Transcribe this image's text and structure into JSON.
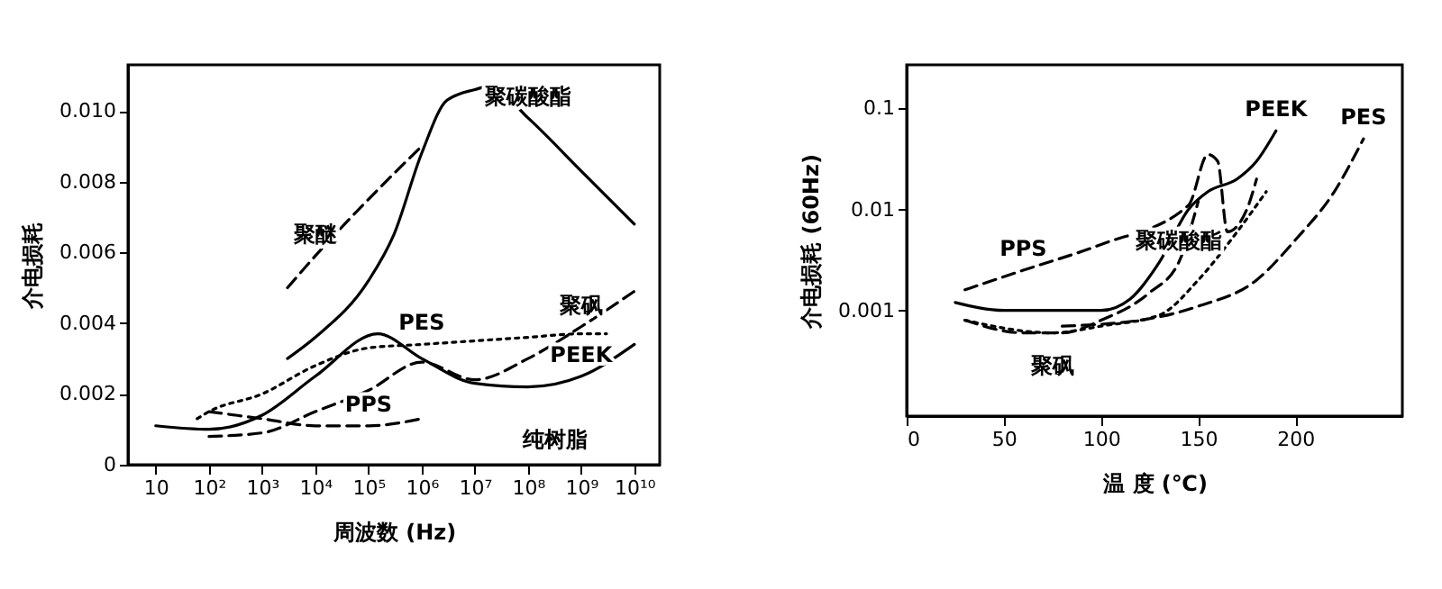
{
  "chart_data": [
    {
      "type": "line",
      "xlabel": "周波数 (Hz)",
      "ylabel": "介电损耗",
      "log": "x",
      "grid": false,
      "xlim": [
        3,
        30000000000
      ],
      "ylim": [
        0,
        0.0113
      ],
      "xticks": [
        10,
        {
          "value": 100,
          "label": "10²"
        },
        {
          "value": 1000,
          "label": "10³"
        },
        {
          "value": 10000,
          "label": "10⁴"
        },
        {
          "value": 100000,
          "label": "10⁵"
        },
        {
          "value": 1000000,
          "label": "10⁶"
        },
        {
          "value": 10000000,
          "label": "10⁷"
        },
        {
          "value": 100000000,
          "label": "10⁸"
        },
        {
          "value": 1000000000,
          "label": "10⁹"
        },
        {
          "value": 10000000000,
          "label": "10¹⁰"
        }
      ],
      "yticks": [
        0,
        0.002,
        0.004,
        0.006,
        0.008,
        {
          "value": 0.01,
          "label": "0.010"
        }
      ],
      "series": [
        {
          "color": "#000000",
          "line_style": "dashed",
          "x": [
            3000,
            10000,
            100000,
            1000000
          ],
          "values": [
            0.005,
            0.0059,
            0.0075,
            0.009
          ]
        },
        {
          "color": "#000000",
          "line_style": "solid",
          "x": [
            3000,
            10000,
            100000,
            300000,
            1000000,
            3000000,
            10000000,
            20000000,
            100000000,
            1000000000,
            10000000000
          ],
          "values": [
            0.003,
            0.0036,
            0.0052,
            0.0065,
            0.0088,
            0.0103,
            0.0106,
            0.0107,
            0.0098,
            0.0083,
            0.0068
          ]
        },
        {
          "color": "#000000",
          "line_style": "dotted",
          "x": [
            60,
            100,
            1000,
            10000,
            100000,
            1000000,
            10000000,
            100000000,
            1000000000,
            3000000000
          ],
          "values": [
            0.0013,
            0.0015,
            0.002,
            0.0028,
            0.0033,
            0.0034,
            0.0035,
            0.0036,
            0.0037,
            0.0037
          ]
        },
        {
          "color": "#000000",
          "line_style": "dashed",
          "x": [
            100,
            1000,
            10000,
            100000,
            1000000,
            10000000,
            100000000,
            1000000000,
            10000000000
          ],
          "values": [
            0.0008,
            0.0009,
            0.0015,
            0.0021,
            0.0029,
            0.0024,
            0.003,
            0.0039,
            0.0049
          ]
        },
        {
          "color": "#000000",
          "line_style": "solid",
          "x": [
            10,
            100,
            1000,
            10000,
            150000,
            1000000,
            10000000,
            100000000,
            1000000000,
            10000000000
          ],
          "values": [
            0.0011,
            0.001,
            0.0014,
            0.0025,
            0.0037,
            0.003,
            0.0023,
            0.0022,
            0.0025,
            0.0034
          ]
        },
        {
          "color": "#000000",
          "line_style": "dashed",
          "x": [
            100,
            1000,
            10000,
            100000,
            1000000
          ],
          "values": [
            0.0015,
            0.0013,
            0.0011,
            0.0011,
            0.0013
          ]
        }
      ],
      "annotations": [
        {
          "text": "聚醚",
          "x": 10000,
          "y": 0.0059
        },
        {
          "text": "聚碳酸酯",
          "x": 100000000,
          "y": 0.0098
        },
        {
          "text": "聚砜",
          "x": 1000000000,
          "y": 0.0039
        },
        {
          "text": "PES",
          "x": 1000000,
          "y": 0.0034
        },
        {
          "text": "PEEK",
          "x": 1000000000,
          "y": 0.0025
        },
        {
          "text": "PPS",
          "x": 100000,
          "y": 0.0011
        },
        "纯树脂"
      ]
    },
    {
      "type": "line",
      "xlabel": "温 度 (℃)",
      "ylabel": "介电损耗 (60Hz)",
      "log": "y",
      "grid": false,
      "xlim": [
        0,
        255
      ],
      "ylim": [
        9e-05,
        0.27
      ],
      "xticks": [
        0,
        50,
        100,
        150,
        200
      ],
      "yticks": [
        0.001,
        0.01,
        0.1
      ],
      "series": [
        {
          "color": "#000000",
          "line_style": "solid",
          "x": [
            25,
            50,
            75,
            100,
            115,
            130,
            145,
            155,
            170,
            180,
            190
          ],
          "values": [
            0.0012,
            0.001,
            0.001,
            0.001,
            0.0013,
            0.003,
            0.01,
            0.015,
            0.02,
            0.03,
            0.06
          ]
        },
        {
          "color": "#000000",
          "line_style": "dashed",
          "x": [
            30,
            60,
            100,
            145,
            155,
            160,
            165,
            175,
            180
          ],
          "values": [
            0.0016,
            0.0025,
            0.0045,
            0.011,
            0.035,
            0.03,
            0.006,
            0.01,
            0.02
          ]
        },
        {
          "color": "#000000",
          "line_style": "dashed",
          "x": [
            30,
            60,
            80,
            100,
            125,
            140,
            150
          ],
          "values": [
            0.0008,
            0.0006,
            0.0006,
            0.0008,
            0.0015,
            0.003,
            0.012
          ]
        },
        {
          "color": "#000000",
          "line_style": "dotted",
          "x": [
            30,
            75,
            100,
            130,
            150,
            170,
            185
          ],
          "values": [
            0.0008,
            0.0006,
            0.0007,
            0.0009,
            0.002,
            0.006,
            0.015
          ]
        },
        {
          "color": "#000000",
          "line_style": "dashed",
          "x": [
            80,
            120,
            150,
            180,
            200,
            220,
            235
          ],
          "values": [
            0.0007,
            0.0008,
            0.0011,
            0.002,
            0.005,
            0.015,
            0.05
          ]
        }
      ],
      "annotations": [
        {
          "text": "PEEK",
          "x": 190,
          "y": 0.06
        },
        {
          "text": "聚碳酸酯",
          "x": 140,
          "y": 0.003
        },
        {
          "text": "PPS",
          "x": 60,
          "y": 0.0025
        },
        {
          "text": "PES",
          "x": 235,
          "y": 0.05
        },
        {
          "text": "聚砜",
          "x": 75,
          "y": 0.0006
        }
      ]
    }
  ]
}
